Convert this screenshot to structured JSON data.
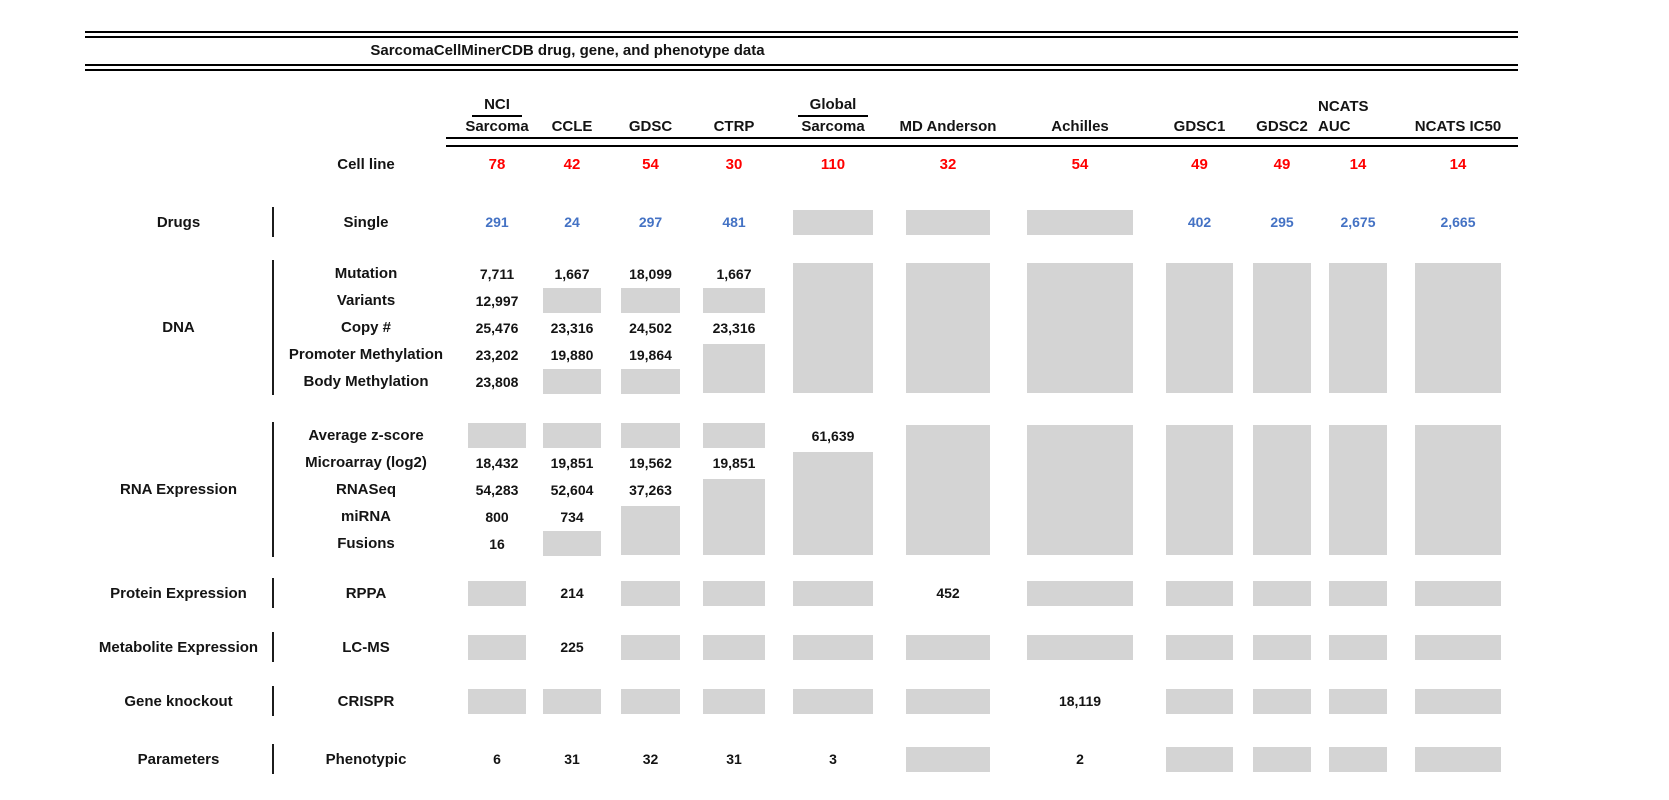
{
  "title": "SarcomaCellMinerCDB drug, gene, and phenotype data",
  "colors": {
    "cell_line_count_red": "#ff0000",
    "drug_count_blue": "#4472c4",
    "missing_data_gray": "#d4d4d4"
  },
  "header": {
    "cell_line_label": "Cell line",
    "columns": [
      {
        "top": "NCI",
        "name": "Sarcoma",
        "count": "78"
      },
      {
        "name": "CCLE",
        "count": "42"
      },
      {
        "name": "GDSC",
        "count": "54"
      },
      {
        "name": "CTRP",
        "count": "30"
      },
      {
        "top": "Global",
        "name": "Sarcoma",
        "count": "110"
      },
      {
        "name": "MD Anderson",
        "count": "32"
      },
      {
        "name": "Achilles",
        "count": "54"
      },
      {
        "name": "GDSC1",
        "count": "49"
      },
      {
        "name": "GDSC2",
        "count": "49"
      },
      {
        "name": "NCATS AUC",
        "count": "14"
      },
      {
        "name": "NCATS IC50",
        "count": "14"
      }
    ]
  },
  "sections": {
    "drugs": {
      "category": "Drugs",
      "rows": [
        {
          "label": "Single",
          "values": [
            "291",
            "24",
            "297",
            "481",
            null,
            null,
            null,
            "402",
            "295",
            "2,675",
            "2,665"
          ]
        }
      ]
    },
    "dna": {
      "category": "DNA",
      "rows": [
        {
          "label": "Mutation",
          "values": [
            "7,711",
            "1,667",
            "18,099",
            "1,667",
            null,
            null,
            null,
            null,
            null,
            null,
            null
          ]
        },
        {
          "label": "Variants",
          "values": [
            "12,997",
            null,
            null,
            null,
            null,
            null,
            null,
            null,
            null,
            null,
            null
          ]
        },
        {
          "label": "Copy #",
          "values": [
            "25,476",
            "23,316",
            "24,502",
            "23,316",
            null,
            null,
            null,
            null,
            null,
            null,
            null
          ]
        },
        {
          "label": "Promoter Methylation",
          "values": [
            "23,202",
            "19,880",
            "19,864",
            null,
            null,
            null,
            null,
            null,
            null,
            null,
            null
          ]
        },
        {
          "label": "Body Methylation",
          "values": [
            "23,808",
            null,
            null,
            null,
            null,
            null,
            null,
            null,
            null,
            null,
            null
          ]
        }
      ]
    },
    "rna": {
      "category": "RNA Expression",
      "rows": [
        {
          "label": "Average z-score",
          "values": [
            null,
            null,
            null,
            null,
            "61,639",
            null,
            null,
            null,
            null,
            null,
            null
          ]
        },
        {
          "label": "Microarray (log2)",
          "values": [
            "18,432",
            "19,851",
            "19,562",
            "19,851",
            null,
            null,
            null,
            null,
            null,
            null,
            null
          ]
        },
        {
          "label": "RNASeq",
          "values": [
            "54,283",
            "52,604",
            "37,263",
            null,
            null,
            null,
            null,
            null,
            null,
            null,
            null
          ]
        },
        {
          "label": "miRNA",
          "values": [
            "800",
            "734",
            null,
            null,
            null,
            null,
            null,
            null,
            null,
            null,
            null
          ]
        },
        {
          "label": "Fusions",
          "values": [
            "16",
            null,
            null,
            null,
            null,
            null,
            null,
            null,
            null,
            null,
            null
          ]
        }
      ]
    },
    "protein": {
      "category": "Protein Expression",
      "rows": [
        {
          "label": "RPPA",
          "values": [
            null,
            "214",
            null,
            null,
            null,
            "452",
            null,
            null,
            null,
            null,
            null
          ]
        }
      ]
    },
    "metabolite": {
      "category": "Metabolite Expression",
      "rows": [
        {
          "label": "LC-MS",
          "values": [
            null,
            "225",
            null,
            null,
            null,
            null,
            null,
            null,
            null,
            null,
            null
          ]
        }
      ]
    },
    "knockout": {
      "category": "Gene knockout",
      "rows": [
        {
          "label": "CRISPR",
          "values": [
            null,
            null,
            null,
            null,
            null,
            null,
            "18,119",
            null,
            null,
            null,
            null
          ]
        }
      ]
    },
    "parameters": {
      "category": "Parameters",
      "rows": [
        {
          "label": "Phenotypic",
          "values": [
            "6",
            "31",
            "32",
            "31",
            "3",
            null,
            "2",
            null,
            null,
            null,
            null
          ]
        }
      ]
    }
  },
  "chart_data": {
    "type": "table",
    "title": "SarcomaCellMinerCDB drug, gene, and phenotype data",
    "columns": [
      "NCI Sarcoma",
      "CCLE",
      "GDSC",
      "CTRP",
      "Global Sarcoma",
      "MD Anderson",
      "Achilles",
      "GDSC1",
      "GDSC2",
      "NCATS AUC",
      "NCATS IC50"
    ],
    "cell_line_counts": [
      78,
      42,
      54,
      30,
      110,
      32,
      54,
      49,
      49,
      14,
      14
    ],
    "rows": [
      {
        "category": "Drugs",
        "data_type": "Single",
        "values": [
          291,
          24,
          297,
          481,
          null,
          null,
          null,
          402,
          295,
          2675,
          2665
        ]
      },
      {
        "category": "DNA",
        "data_type": "Mutation",
        "values": [
          7711,
          1667,
          18099,
          1667,
          null,
          null,
          null,
          null,
          null,
          null,
          null
        ]
      },
      {
        "category": "DNA",
        "data_type": "Variants",
        "values": [
          12997,
          null,
          null,
          null,
          null,
          null,
          null,
          null,
          null,
          null,
          null
        ]
      },
      {
        "category": "DNA",
        "data_type": "Copy #",
        "values": [
          25476,
          23316,
          24502,
          23316,
          null,
          null,
          null,
          null,
          null,
          null,
          null
        ]
      },
      {
        "category": "DNA",
        "data_type": "Promoter Methylation",
        "values": [
          23202,
          19880,
          19864,
          null,
          null,
          null,
          null,
          null,
          null,
          null,
          null
        ]
      },
      {
        "category": "DNA",
        "data_type": "Body Methylation",
        "values": [
          23808,
          null,
          null,
          null,
          null,
          null,
          null,
          null,
          null,
          null,
          null
        ]
      },
      {
        "category": "RNA Expression",
        "data_type": "Average z-score",
        "values": [
          null,
          null,
          null,
          null,
          61639,
          null,
          null,
          null,
          null,
          null,
          null
        ]
      },
      {
        "category": "RNA Expression",
        "data_type": "Microarray (log2)",
        "values": [
          18432,
          19851,
          19562,
          19851,
          null,
          null,
          null,
          null,
          null,
          null,
          null
        ]
      },
      {
        "category": "RNA Expression",
        "data_type": "RNASeq",
        "values": [
          54283,
          52604,
          37263,
          null,
          null,
          null,
          null,
          null,
          null,
          null,
          null
        ]
      },
      {
        "category": "RNA Expression",
        "data_type": "miRNA",
        "values": [
          800,
          734,
          null,
          null,
          null,
          null,
          null,
          null,
          null,
          null,
          null
        ]
      },
      {
        "category": "RNA Expression",
        "data_type": "Fusions",
        "values": [
          16,
          null,
          null,
          null,
          null,
          null,
          null,
          null,
          null,
          null,
          null
        ]
      },
      {
        "category": "Protein Expression",
        "data_type": "RPPA",
        "values": [
          null,
          214,
          null,
          null,
          null,
          452,
          null,
          null,
          null,
          null,
          null
        ]
      },
      {
        "category": "Metabolite Expression",
        "data_type": "LC-MS",
        "values": [
          null,
          225,
          null,
          null,
          null,
          null,
          null,
          null,
          null,
          null,
          null
        ]
      },
      {
        "category": "Gene knockout",
        "data_type": "CRISPR",
        "values": [
          null,
          null,
          null,
          null,
          null,
          null,
          18119,
          null,
          null,
          null,
          null
        ]
      },
      {
        "category": "Parameters",
        "data_type": "Phenotypic",
        "values": [
          6,
          31,
          32,
          31,
          3,
          null,
          2,
          null,
          null,
          null,
          null
        ]
      }
    ],
    "missing_value_marker": "gray box = not available",
    "legend_position": "none",
    "grid": false
  }
}
